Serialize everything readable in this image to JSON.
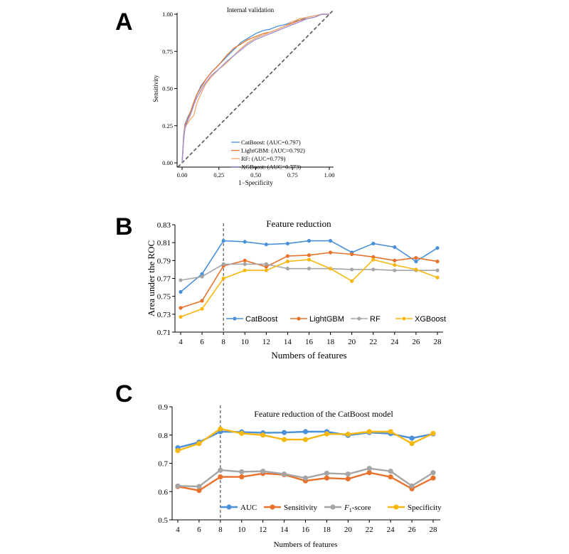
{
  "colors": {
    "catboost": "#4a90d9",
    "lightgbm": "#e8712c",
    "rf": "#a5a5a5",
    "xgboost": "#f6b810",
    "diag": "#555555",
    "axis": "#000000"
  },
  "chart_data": [
    {
      "panel": "A",
      "type": "line",
      "title": "Internal validation",
      "xlabel": "1−Specificity",
      "ylabel": "Sensitivity",
      "xlim": [
        0,
        1
      ],
      "ylim": [
        0,
        1
      ],
      "xticks": [
        "0.00",
        "0.25",
        "0.50",
        "0.75",
        "1.00"
      ],
      "yticks": [
        "0.00",
        "0.25",
        "0.50",
        "0.75",
        "1.00"
      ],
      "legend_position": "bottom-right",
      "series": [
        {
          "name": "CatBoost",
          "legend": "CatBoost: (AUC=0.797)",
          "color_key": "catboost",
          "x": [
            0,
            0.005,
            0.01,
            0.02,
            0.04,
            0.06,
            0.08,
            0.1,
            0.13,
            0.16,
            0.2,
            0.25,
            0.3,
            0.35,
            0.4,
            0.45,
            0.5,
            0.55,
            0.6,
            0.65,
            0.7,
            0.75,
            0.8,
            0.85,
            0.9,
            0.95,
            1
          ],
          "y": [
            0,
            0.08,
            0.18,
            0.26,
            0.31,
            0.35,
            0.41,
            0.46,
            0.52,
            0.56,
            0.61,
            0.66,
            0.71,
            0.76,
            0.81,
            0.84,
            0.87,
            0.89,
            0.9,
            0.92,
            0.93,
            0.95,
            0.96,
            0.98,
            0.99,
            1,
            1
          ]
        },
        {
          "name": "LightGBM",
          "legend": "LightGBM: (AUC=0.792)",
          "color_key": "lightgbm",
          "x": [
            0,
            0.005,
            0.01,
            0.02,
            0.04,
            0.06,
            0.08,
            0.1,
            0.13,
            0.16,
            0.2,
            0.25,
            0.3,
            0.35,
            0.4,
            0.45,
            0.5,
            0.55,
            0.6,
            0.65,
            0.7,
            0.75,
            0.8,
            0.85,
            0.9,
            0.95,
            1
          ],
          "y": [
            0,
            0.07,
            0.17,
            0.25,
            0.3,
            0.35,
            0.41,
            0.46,
            0.51,
            0.56,
            0.61,
            0.66,
            0.72,
            0.77,
            0.8,
            0.83,
            0.85,
            0.87,
            0.88,
            0.9,
            0.92,
            0.94,
            0.96,
            0.97,
            0.98,
            1,
            1
          ]
        },
        {
          "name": "RF",
          "legend": "RF: (AUC=0.779)",
          "color_key": "lightgbm",
          "x": [
            0,
            0.005,
            0.01,
            0.02,
            0.04,
            0.06,
            0.08,
            0.1,
            0.13,
            0.16,
            0.2,
            0.25,
            0.3,
            0.35,
            0.4,
            0.45,
            0.5,
            0.55,
            0.6,
            0.65,
            0.7,
            0.75,
            0.8,
            0.85,
            0.9,
            0.95,
            1
          ],
          "y": [
            0,
            0.06,
            0.16,
            0.24,
            0.27,
            0.3,
            0.32,
            0.4,
            0.47,
            0.53,
            0.58,
            0.63,
            0.67,
            0.72,
            0.77,
            0.81,
            0.84,
            0.86,
            0.88,
            0.9,
            0.92,
            0.95,
            0.97,
            0.98,
            0.99,
            1,
            1
          ]
        },
        {
          "name": "XGBoost",
          "legend": "XGBoost: (AUC=0.773)",
          "color_key": "xgboost",
          "x": [
            0,
            0.005,
            0.01,
            0.02,
            0.04,
            0.06,
            0.08,
            0.1,
            0.13,
            0.16,
            0.2,
            0.25,
            0.3,
            0.35,
            0.4,
            0.45,
            0.5,
            0.55,
            0.6,
            0.65,
            0.7,
            0.75,
            0.8,
            0.85,
            0.9,
            0.95,
            1
          ],
          "y": [
            0,
            0.06,
            0.15,
            0.23,
            0.29,
            0.33,
            0.39,
            0.44,
            0.49,
            0.54,
            0.59,
            0.63,
            0.68,
            0.72,
            0.76,
            0.8,
            0.83,
            0.85,
            0.87,
            0.89,
            0.91,
            0.93,
            0.95,
            0.97,
            0.98,
            1,
            1
          ]
        }
      ]
    },
    {
      "panel": "B",
      "type": "line",
      "title": "Feature reduction",
      "xlabel": "Numbers of features",
      "ylabel": "Area under the ROC",
      "x": [
        4,
        6,
        8,
        10,
        12,
        14,
        16,
        18,
        20,
        22,
        24,
        26,
        28
      ],
      "xticks": [
        "4",
        "6",
        "8",
        "10",
        "12",
        "14",
        "16",
        "18",
        "20",
        "22",
        "24",
        "26",
        "28"
      ],
      "ylim": [
        0.71,
        0.83
      ],
      "yticks": [
        "0.71",
        "0.73",
        "0.75",
        "0.77",
        "0.79",
        "0.81",
        "0.83"
      ],
      "vline_x": 8,
      "legend_position": "bottom",
      "series": [
        {
          "name": "CatBoost",
          "color_key": "catboost",
          "values": [
            0.755,
            0.775,
            0.812,
            0.811,
            0.808,
            0.809,
            0.812,
            0.812,
            0.799,
            0.809,
            0.805,
            0.789,
            0.804
          ]
        },
        {
          "name": "LightGBM",
          "color_key": "lightgbm",
          "values": [
            0.737,
            0.745,
            0.784,
            0.79,
            0.783,
            0.795,
            0.796,
            0.799,
            0.797,
            0.794,
            0.79,
            0.793,
            0.789
          ]
        },
        {
          "name": "RF",
          "color_key": "rf",
          "values": [
            0.768,
            0.772,
            0.786,
            0.786,
            0.786,
            0.781,
            0.781,
            0.781,
            0.78,
            0.78,
            0.779,
            0.779,
            0.779
          ]
        },
        {
          "name": "XGBoost",
          "color_key": "xgboost",
          "values": [
            0.727,
            0.736,
            0.77,
            0.779,
            0.779,
            0.789,
            0.791,
            0.781,
            0.767,
            0.791,
            0.785,
            0.78,
            0.771
          ]
        }
      ]
    },
    {
      "panel": "C",
      "type": "line",
      "title": "Feature reduction of the CatBoost model",
      "xlabel": "Numbers of features",
      "ylabel": "",
      "x": [
        4,
        6,
        8,
        10,
        12,
        14,
        16,
        18,
        20,
        22,
        24,
        26,
        28
      ],
      "xticks": [
        "4",
        "6",
        "8",
        "10",
        "12",
        "14",
        "16",
        "18",
        "20",
        "22",
        "24",
        "26",
        "28"
      ],
      "ylim": [
        0.5,
        0.9
      ],
      "yticks": [
        "0.5",
        "0.6",
        "0.7",
        "0.8",
        "0.9"
      ],
      "vline_x": 8,
      "legend_position": "bottom",
      "series": [
        {
          "name": "AUC",
          "color_key": "catboost",
          "values": [
            0.755,
            0.775,
            0.812,
            0.811,
            0.808,
            0.809,
            0.812,
            0.812,
            0.799,
            0.809,
            0.805,
            0.789,
            0.804
          ]
        },
        {
          "name": "Sensitivity",
          "color_key": "lightgbm",
          "values": [
            0.618,
            0.604,
            0.652,
            0.652,
            0.664,
            0.66,
            0.638,
            0.648,
            0.645,
            0.667,
            0.652,
            0.61,
            0.648
          ]
        },
        {
          "name": "F1-score",
          "legend_main": "F",
          "legend_sub": "1",
          "legend_rest": "-score",
          "color_key": "rf",
          "values": [
            0.62,
            0.618,
            0.676,
            0.67,
            0.672,
            0.662,
            0.648,
            0.665,
            0.662,
            0.682,
            0.672,
            0.62,
            0.667
          ]
        },
        {
          "name": "Specificity",
          "color_key": "xgboost",
          "values": [
            0.745,
            0.77,
            0.822,
            0.806,
            0.8,
            0.784,
            0.784,
            0.804,
            0.803,
            0.812,
            0.812,
            0.77,
            0.806
          ]
        }
      ]
    }
  ],
  "panel_letters": [
    "A",
    "B",
    "C"
  ]
}
